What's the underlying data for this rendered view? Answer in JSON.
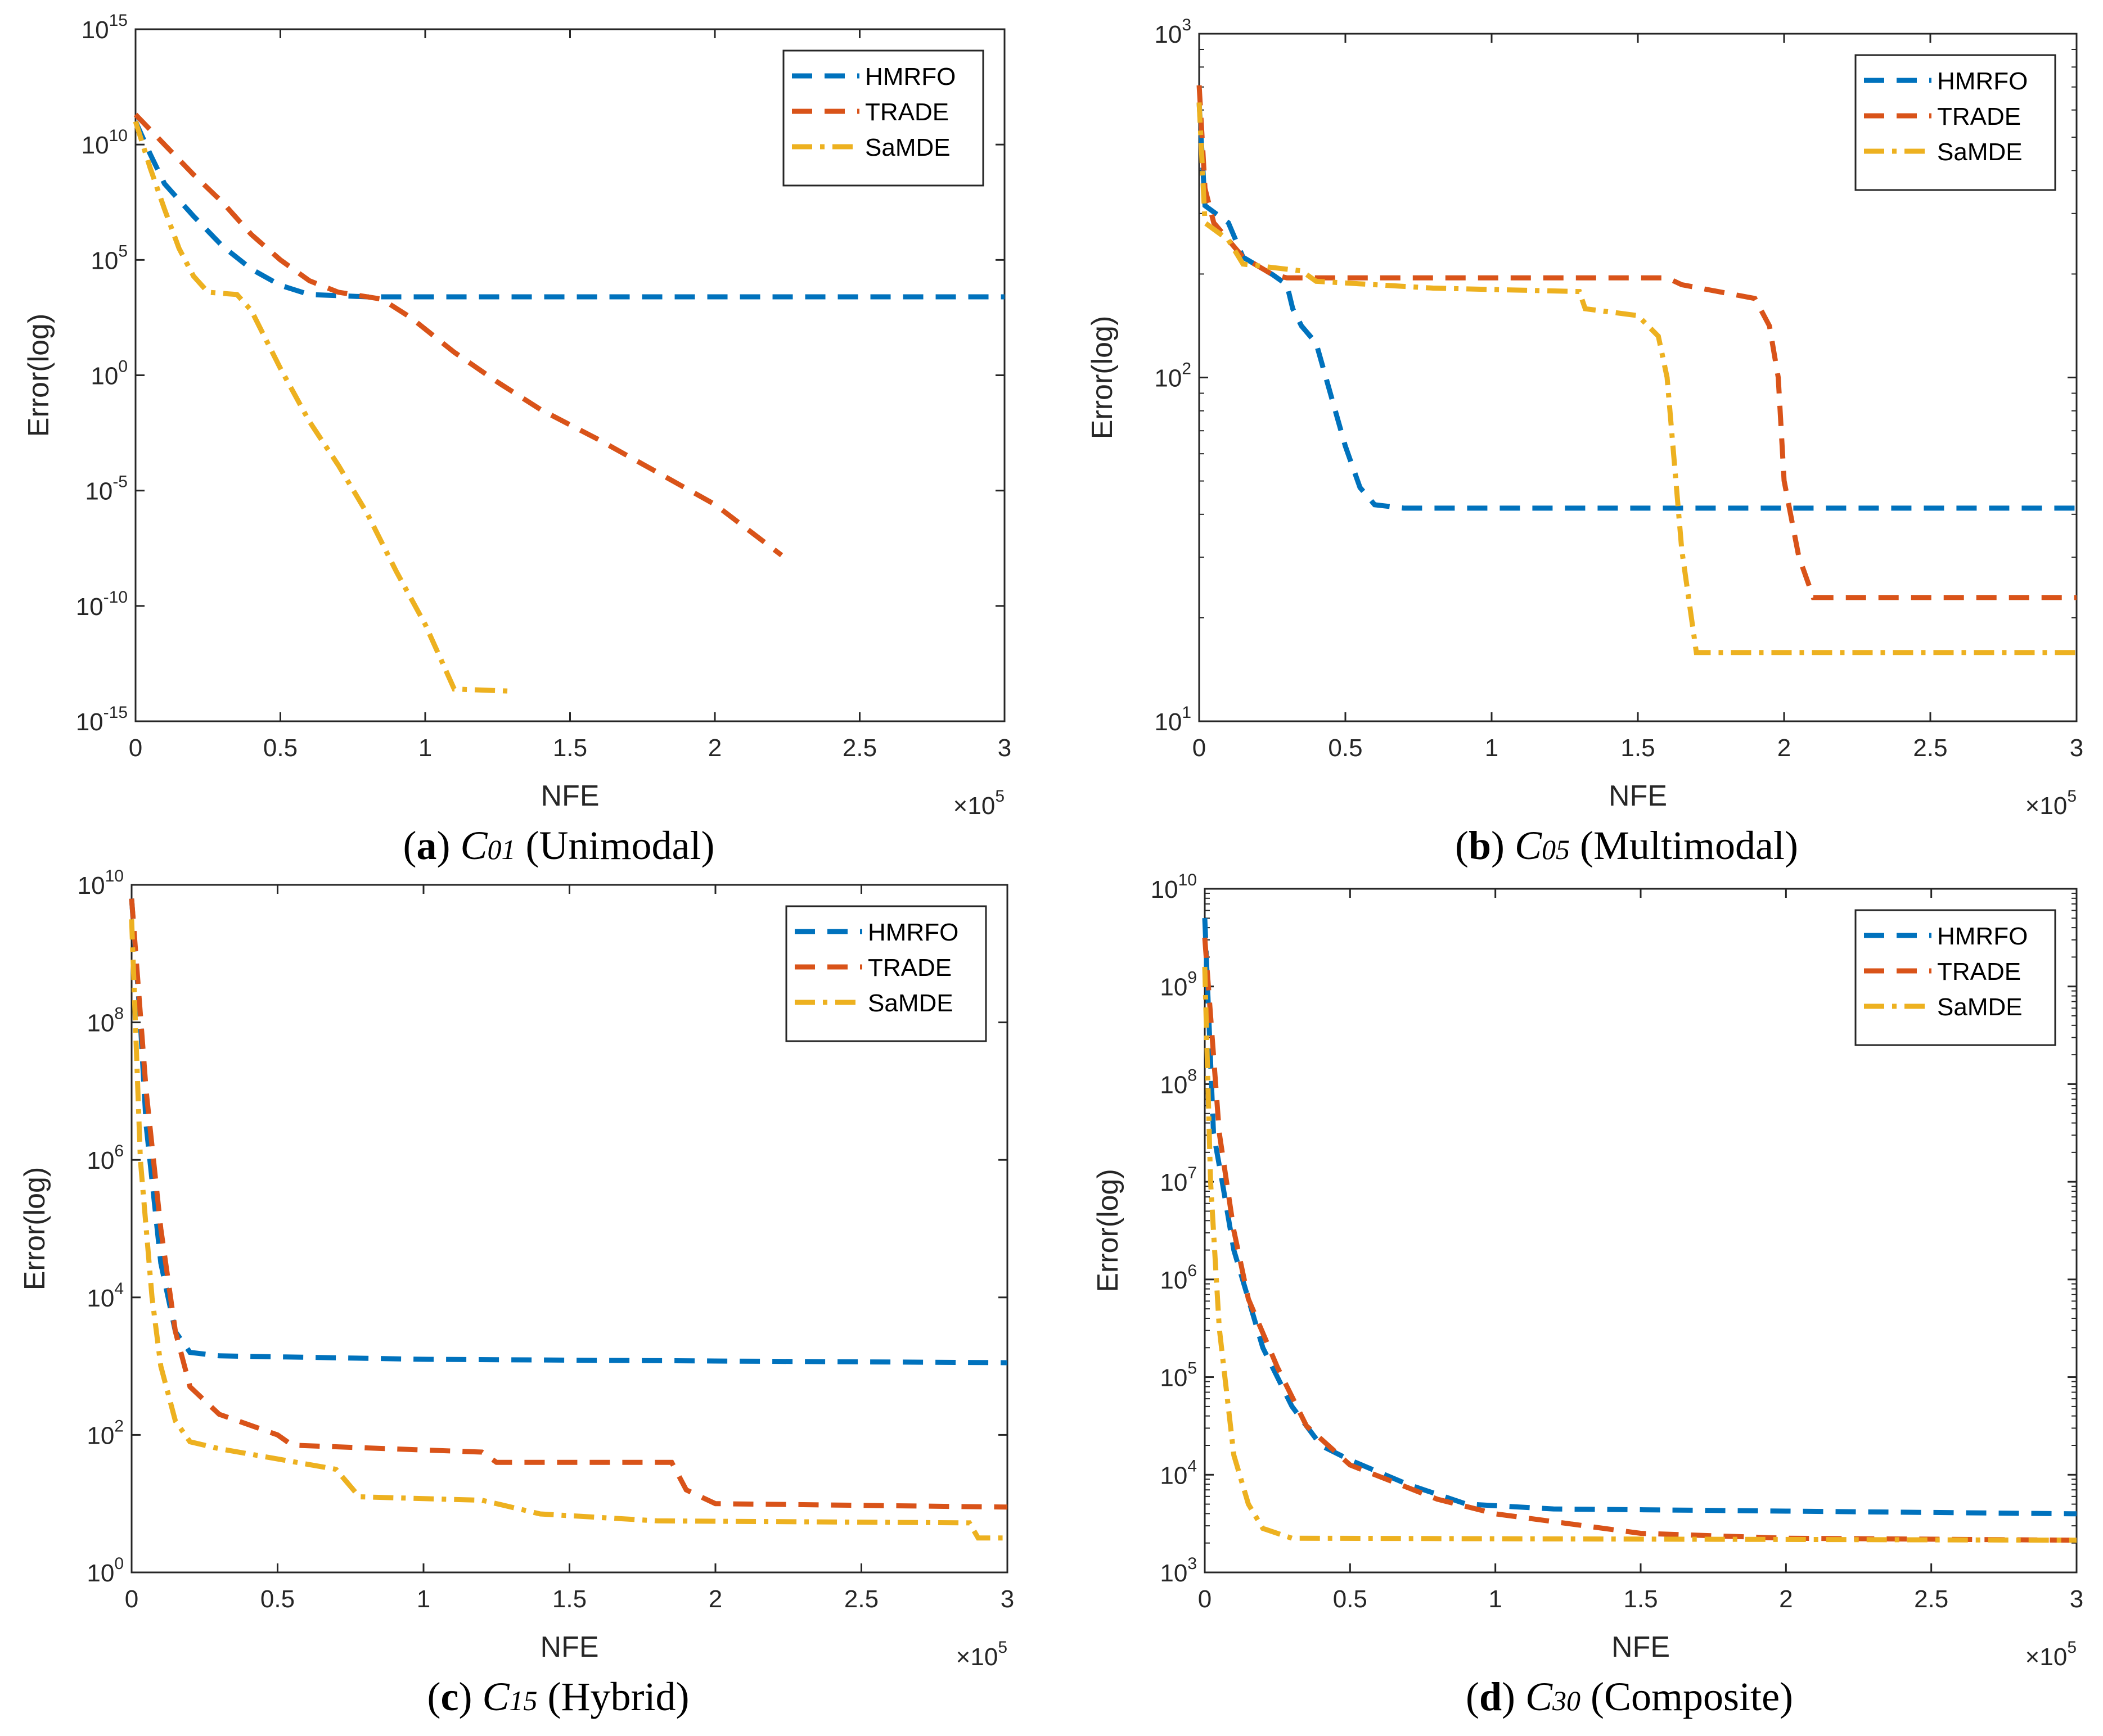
{
  "colors": {
    "HMRFO": "#0072BD",
    "TRADE": "#D95319",
    "SaMDE": "#EDB120"
  },
  "chart_data": [
    {
      "type": "line",
      "caption": {
        "letter": "a",
        "func": "C",
        "sub": "01",
        "desc": "(Unimodal)"
      },
      "xlabel": "NFE",
      "ylabel": "Error(log)",
      "xscale_label": "×10",
      "xscale_exp": "5",
      "xlim": [
        0,
        3
      ],
      "x_ticks": [
        "0",
        "0.5",
        "1",
        "1.5",
        "2",
        "2.5",
        "3"
      ],
      "yscale": "log",
      "ylim_exp": [
        -15,
        15
      ],
      "y_tick_exps": [
        "15",
        "10",
        "5",
        "0",
        "-5",
        "-10",
        "-15"
      ],
      "legend": {
        "placement": "top-right",
        "entries": [
          "HMRFO",
          "TRADE",
          "SaMDE"
        ]
      },
      "series": [
        {
          "name": "HMRFO",
          "style": "dashed",
          "points_log10": [
            [
              0,
              11
            ],
            [
              0.05,
              9.6
            ],
            [
              0.1,
              8.3
            ],
            [
              0.2,
              6.9
            ],
            [
              0.3,
              5.6
            ],
            [
              0.4,
              4.6
            ],
            [
              0.5,
              3.9
            ],
            [
              0.6,
              3.5
            ],
            [
              0.8,
              3.4
            ],
            [
              3,
              3.4
            ]
          ]
        },
        {
          "name": "TRADE",
          "style": "dashed",
          "points_log10": [
            [
              0,
              11.3
            ],
            [
              0.1,
              10
            ],
            [
              0.2,
              8.7
            ],
            [
              0.3,
              7.5
            ],
            [
              0.4,
              6.1
            ],
            [
              0.5,
              5
            ],
            [
              0.6,
              4.1
            ],
            [
              0.7,
              3.6
            ],
            [
              0.85,
              3.3
            ],
            [
              0.95,
              2.5
            ],
            [
              1.1,
              1
            ],
            [
              1.25,
              -0.3
            ],
            [
              1.4,
              -1.5
            ],
            [
              1.6,
              -2.8
            ],
            [
              1.8,
              -4.2
            ],
            [
              2,
              -5.6
            ],
            [
              2.23,
              -7.8
            ]
          ]
        },
        {
          "name": "SaMDE",
          "style": "dashdot",
          "points_log10": [
            [
              0,
              11
            ],
            [
              0.05,
              9
            ],
            [
              0.1,
              7.2
            ],
            [
              0.15,
              5.5
            ],
            [
              0.2,
              4.3
            ],
            [
              0.25,
              3.6
            ],
            [
              0.35,
              3.5
            ],
            [
              0.4,
              2.8
            ],
            [
              0.5,
              0.3
            ],
            [
              0.6,
              -2
            ],
            [
              0.7,
              -3.9
            ],
            [
              0.8,
              -6
            ],
            [
              0.9,
              -8.5
            ],
            [
              1,
              -10.8
            ],
            [
              1.1,
              -13.6
            ],
            [
              1.31,
              -13.7
            ]
          ]
        }
      ]
    },
    {
      "type": "line",
      "caption": {
        "letter": "b",
        "func": "C",
        "sub": "05",
        "desc": "(Multimodal)"
      },
      "xlabel": "NFE",
      "ylabel": "Error(log)",
      "xscale_label": "×10",
      "xscale_exp": "5",
      "xlim": [
        0,
        3
      ],
      "x_ticks": [
        "0",
        "0.5",
        "1",
        "1.5",
        "2",
        "2.5",
        "3"
      ],
      "yscale": "log",
      "ylim_exp": [
        1,
        3
      ],
      "y_tick_exps": [
        "3",
        "2",
        "1"
      ],
      "legend": {
        "placement": "top-right",
        "entries": [
          "HMRFO",
          "TRADE",
          "SaMDE"
        ]
      },
      "series": [
        {
          "name": "HMRFO",
          "style": "dashed",
          "points_log10": [
            [
              0,
              2.8
            ],
            [
              0.02,
              2.5
            ],
            [
              0.1,
              2.45
            ],
            [
              0.15,
              2.35
            ],
            [
              0.25,
              2.3
            ],
            [
              0.3,
              2.27
            ],
            [
              0.32,
              2.2
            ],
            [
              0.35,
              2.15
            ],
            [
              0.4,
              2.1
            ],
            [
              0.45,
              1.95
            ],
            [
              0.5,
              1.8
            ],
            [
              0.55,
              1.68
            ],
            [
              0.6,
              1.63
            ],
            [
              0.7,
              1.62
            ],
            [
              3,
              1.62
            ]
          ]
        },
        {
          "name": "TRADE",
          "style": "dashed",
          "points_log10": [
            [
              0,
              2.85
            ],
            [
              0.02,
              2.55
            ],
            [
              0.05,
              2.45
            ],
            [
              0.1,
              2.4
            ],
            [
              0.15,
              2.35
            ],
            [
              0.25,
              2.3
            ],
            [
              0.3,
              2.29
            ],
            [
              1.6,
              2.29
            ],
            [
              1.65,
              2.27
            ],
            [
              1.9,
              2.23
            ],
            [
              1.95,
              2.15
            ],
            [
              1.98,
              2.0
            ],
            [
              2,
              1.7
            ],
            [
              2.05,
              1.48
            ],
            [
              2.1,
              1.36
            ],
            [
              3,
              1.36
            ]
          ]
        },
        {
          "name": "SaMDE",
          "style": "dashdot",
          "points_log10": [
            [
              0,
              2.8
            ],
            [
              0.02,
              2.45
            ],
            [
              0.1,
              2.4
            ],
            [
              0.15,
              2.33
            ],
            [
              0.35,
              2.31
            ],
            [
              0.4,
              2.28
            ],
            [
              0.8,
              2.26
            ],
            [
              1.3,
              2.25
            ],
            [
              1.32,
              2.2
            ],
            [
              1.5,
              2.18
            ],
            [
              1.57,
              2.12
            ],
            [
              1.6,
              2.0
            ],
            [
              1.63,
              1.7
            ],
            [
              1.65,
              1.5
            ],
            [
              1.7,
              1.2
            ],
            [
              3,
              1.2
            ]
          ]
        }
      ]
    },
    {
      "type": "line",
      "caption": {
        "letter": "c",
        "func": "C",
        "sub": "15",
        "desc": "(Hybrid)"
      },
      "xlabel": "NFE",
      "ylabel": "Error(log)",
      "xscale_label": "×10",
      "xscale_exp": "5",
      "xlim": [
        0,
        3
      ],
      "x_ticks": [
        "0",
        "0.5",
        "1",
        "1.5",
        "2",
        "2.5",
        "3"
      ],
      "yscale": "log",
      "ylim_exp": [
        0,
        10
      ],
      "y_tick_exps": [
        "10",
        "8",
        "6",
        "4",
        "2",
        "0"
      ],
      "legend": {
        "placement": "top-right",
        "entries": [
          "HMRFO",
          "TRADE",
          "SaMDE"
        ]
      },
      "series": [
        {
          "name": "HMRFO",
          "style": "dashed",
          "points_log10": [
            [
              0,
              9.8
            ],
            [
              0.03,
              8
            ],
            [
              0.05,
              6.5
            ],
            [
              0.1,
              4.5
            ],
            [
              0.15,
              3.5
            ],
            [
              0.2,
              3.2
            ],
            [
              0.3,
              3.15
            ],
            [
              1,
              3.1
            ],
            [
              3,
              3.05
            ]
          ]
        },
        {
          "name": "TRADE",
          "style": "dashed",
          "points_log10": [
            [
              0,
              9.8
            ],
            [
              0.05,
              7
            ],
            [
              0.1,
              5
            ],
            [
              0.15,
              3.5
            ],
            [
              0.2,
              2.7
            ],
            [
              0.3,
              2.3
            ],
            [
              0.5,
              2
            ],
            [
              0.55,
              1.85
            ],
            [
              1.2,
              1.75
            ],
            [
              1.25,
              1.6
            ],
            [
              1.85,
              1.6
            ],
            [
              1.9,
              1.2
            ],
            [
              2,
              1
            ],
            [
              3,
              0.95
            ]
          ]
        },
        {
          "name": "SaMDE",
          "style": "dashdot",
          "points_log10": [
            [
              0,
              9.5
            ],
            [
              0.03,
              6
            ],
            [
              0.07,
              4
            ],
            [
              0.1,
              3
            ],
            [
              0.15,
              2.2
            ],
            [
              0.2,
              1.9
            ],
            [
              0.3,
              1.8
            ],
            [
              0.5,
              1.65
            ],
            [
              0.7,
              1.5
            ],
            [
              0.78,
              1.1
            ],
            [
              1.2,
              1.05
            ],
            [
              1.4,
              0.85
            ],
            [
              1.8,
              0.75
            ],
            [
              2.87,
              0.72
            ],
            [
              2.9,
              0.5
            ],
            [
              3,
              0.5
            ]
          ]
        }
      ]
    },
    {
      "type": "line",
      "caption": {
        "letter": "d",
        "func": "C",
        "sub": "30",
        "desc": "(Composite)"
      },
      "xlabel": "NFE",
      "ylabel": "Error(log)",
      "xscale_label": "×10",
      "xscale_exp": "5",
      "xlim": [
        0,
        3
      ],
      "x_ticks": [
        "0",
        "0.5",
        "1",
        "1.5",
        "2",
        "2.5",
        "3"
      ],
      "yscale": "log",
      "ylim_exp": [
        3,
        10
      ],
      "y_tick_exps": [
        "10",
        "9",
        "8",
        "7",
        "6",
        "5",
        "4",
        "3"
      ],
      "legend": {
        "placement": "top-right",
        "entries": [
          "HMRFO",
          "TRADE",
          "SaMDE"
        ]
      },
      "series": [
        {
          "name": "HMRFO",
          "style": "dashed",
          "points_log10": [
            [
              0,
              9.7
            ],
            [
              0.03,
              7.5
            ],
            [
              0.06,
              7
            ],
            [
              0.1,
              6.3
            ],
            [
              0.15,
              5.8
            ],
            [
              0.2,
              5.3
            ],
            [
              0.3,
              4.7
            ],
            [
              0.4,
              4.3
            ],
            [
              0.5,
              4.15
            ],
            [
              0.7,
              3.9
            ],
            [
              0.9,
              3.7
            ],
            [
              1.2,
              3.65
            ],
            [
              3,
              3.6
            ]
          ]
        },
        {
          "name": "TRADE",
          "style": "dashed",
          "points_log10": [
            [
              0,
              9.5
            ],
            [
              0.05,
              7.5
            ],
            [
              0.1,
              6.5
            ],
            [
              0.15,
              5.8
            ],
            [
              0.25,
              5.1
            ],
            [
              0.35,
              4.5
            ],
            [
              0.5,
              4.1
            ],
            [
              0.8,
              3.75
            ],
            [
              1,
              3.6
            ],
            [
              1.5,
              3.4
            ],
            [
              2,
              3.35
            ],
            [
              3,
              3.33
            ]
          ]
        },
        {
          "name": "SaMDE",
          "style": "dashdot",
          "points_log10": [
            [
              0,
              9.2
            ],
            [
              0.02,
              7
            ],
            [
              0.05,
              5.5
            ],
            [
              0.1,
              4.2
            ],
            [
              0.15,
              3.7
            ],
            [
              0.2,
              3.45
            ],
            [
              0.3,
              3.35
            ],
            [
              3,
              3.33
            ]
          ]
        }
      ]
    }
  ]
}
